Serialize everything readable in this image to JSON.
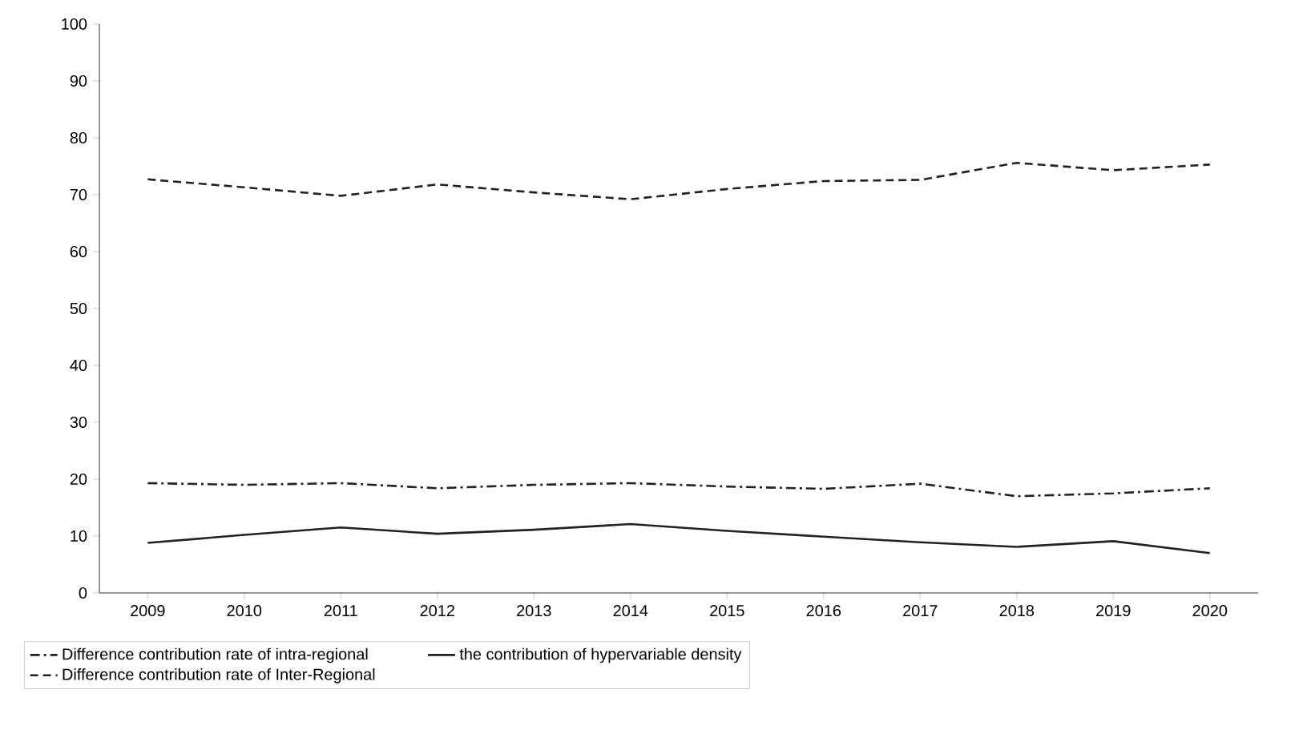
{
  "chart_data": {
    "type": "line",
    "categories": [
      "2009",
      "2010",
      "2011",
      "2012",
      "2013",
      "2014",
      "2015",
      "2016",
      "2017",
      "2018",
      "2019",
      "2020"
    ],
    "series": [
      {
        "name": "Difference contribution rate of intra-regional",
        "color": "#222222",
        "line_style": "dashdot",
        "values": [
          19.3,
          19.0,
          19.3,
          18.4,
          19.0,
          19.3,
          18.7,
          18.3,
          19.2,
          17.0,
          17.5,
          18.4
        ]
      },
      {
        "name": "Difference contribution rate of Inter-Regional",
        "color": "#222222",
        "line_style": "dashed",
        "values": [
          72.7,
          71.3,
          69.8,
          71.8,
          70.4,
          69.2,
          71.0,
          72.4,
          72.6,
          75.6,
          74.3,
          75.3
        ]
      },
      {
        "name": "the contribution of hypervariable density",
        "color": "#222222",
        "line_style": "solid",
        "values": [
          8.8,
          10.2,
          11.5,
          10.4,
          11.1,
          12.1,
          10.9,
          9.9,
          8.9,
          8.1,
          9.1,
          7.0
        ]
      }
    ],
    "ylim": [
      0,
      100
    ],
    "yticks": [
      0,
      10,
      20,
      30,
      40,
      50,
      60,
      70,
      80,
      90,
      100
    ],
    "grid": false,
    "legend": "bottom",
    "marker": "none"
  }
}
